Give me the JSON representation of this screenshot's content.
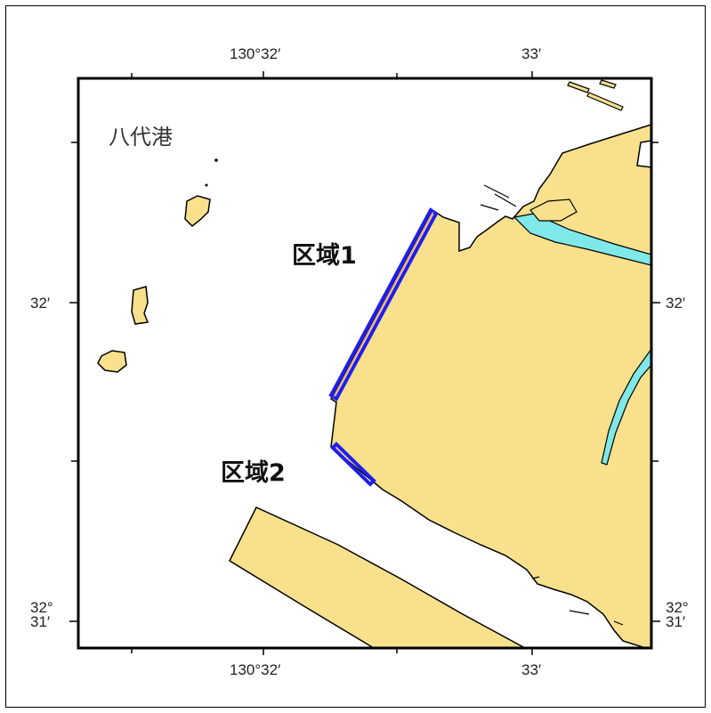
{
  "map": {
    "place_name": "八代港",
    "areas": [
      {
        "label": "区域1"
      },
      {
        "label": "区域2"
      }
    ],
    "top_labels": [
      "130°32′",
      "33′"
    ],
    "bottom_labels": [
      "130°32′",
      "33′"
    ],
    "left_labels": {
      "mid": "32′",
      "low_line1": "32°",
      "low_line2": "31′"
    },
    "right_labels": {
      "mid": "32′",
      "low_line1": "32°",
      "low_line2": "31′"
    },
    "colors": {
      "land": "#F8E08C",
      "water_channel": "#7FE8E8",
      "area_outline": "#1E1EEE",
      "frame": "#000000",
      "background": "#FFFFFF"
    }
  }
}
